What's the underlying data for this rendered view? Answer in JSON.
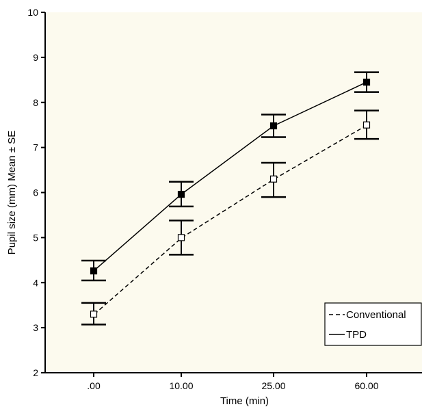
{
  "chart_data": {
    "type": "line",
    "title": "",
    "xlabel": "Time (min)",
    "ylabel": "Pupil size (mm) Mean ± SE",
    "categories": [
      ".00",
      "10.00",
      "25.00",
      "60.00"
    ],
    "ylim": [
      2,
      10
    ],
    "yticks": [
      "2",
      "3",
      "4",
      "5",
      "6",
      "7",
      "8",
      "9",
      "10"
    ],
    "grid": false,
    "legend_position": "bottom-right",
    "background_color": "#fcfaee",
    "series": [
      {
        "name": "Conventional",
        "line_style": "dashed",
        "marker": "open-square",
        "values": [
          3.3,
          5.0,
          6.3,
          7.5
        ],
        "error_low": [
          3.07,
          4.62,
          5.9,
          7.19
        ],
        "error_high": [
          3.55,
          5.38,
          6.66,
          7.82
        ]
      },
      {
        "name": "TPD",
        "line_style": "solid",
        "marker": "filled-square",
        "values": [
          4.26,
          5.96,
          7.48,
          8.45
        ],
        "error_low": [
          4.05,
          5.69,
          7.23,
          8.23
        ],
        "error_high": [
          4.49,
          6.24,
          7.73,
          8.67
        ]
      }
    ]
  }
}
